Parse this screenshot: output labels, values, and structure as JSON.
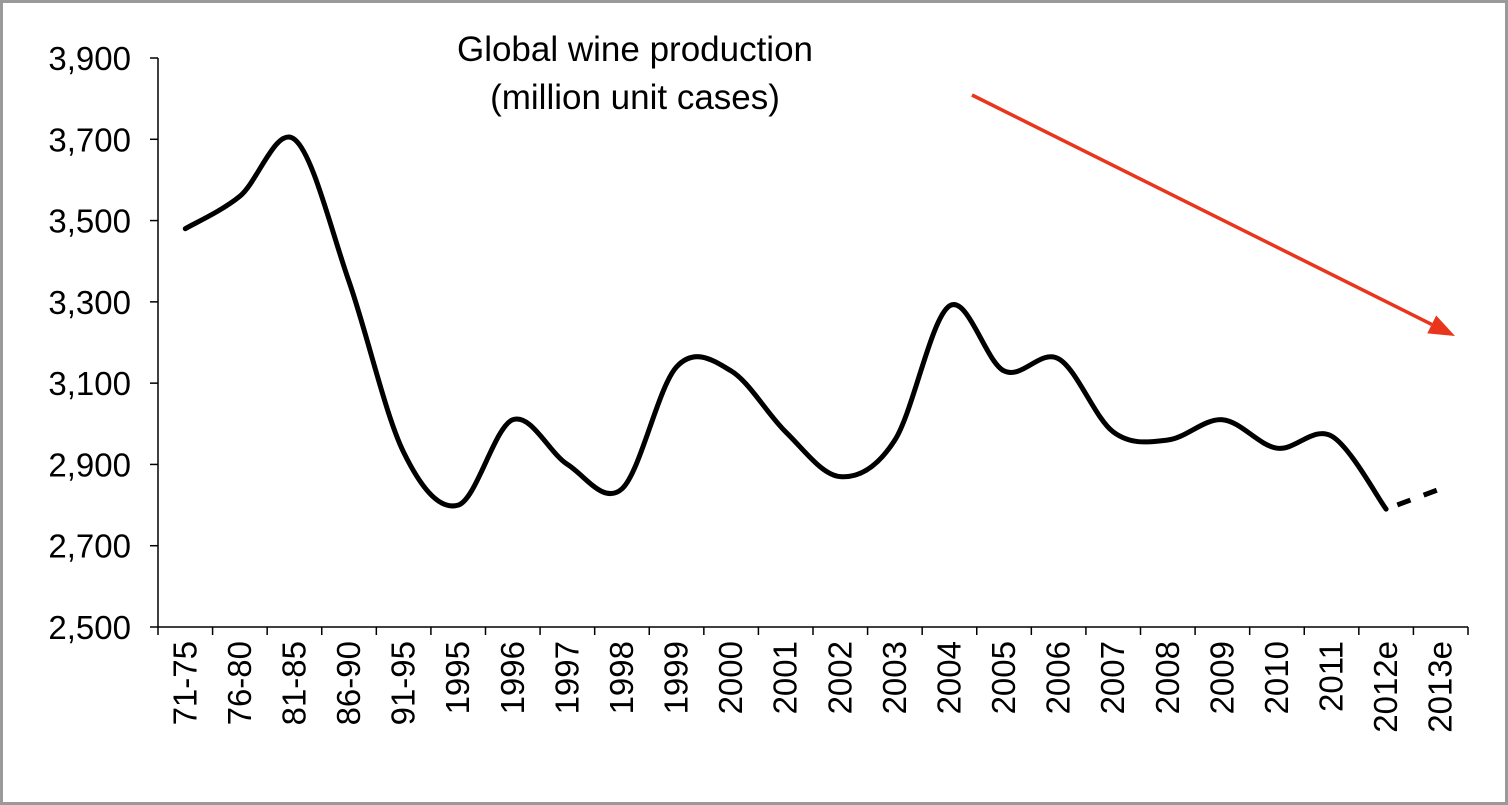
{
  "chart_data": {
    "type": "line",
    "title": "Global wine production",
    "subtitle": "(million unit cases)",
    "xlabel": "",
    "ylabel": "",
    "ylim": [
      2500,
      3900
    ],
    "yticks": [
      2500,
      2700,
      2900,
      3100,
      3300,
      3500,
      3700,
      3900
    ],
    "ytick_labels": [
      "2,500",
      "2,700",
      "2,900",
      "3,100",
      "3,300",
      "3,500",
      "3,700",
      "3,900"
    ],
    "categories": [
      "71-75",
      "76-80",
      "81-85",
      "86-90",
      "91-95",
      "1995",
      "1996",
      "1997",
      "1998",
      "1999",
      "2000",
      "2001",
      "2002",
      "2003",
      "2004",
      "2005",
      "2006",
      "2007",
      "2008",
      "2009",
      "2010",
      "2011",
      "2012e",
      "2013e"
    ],
    "grid": false,
    "legend": "none",
    "series": [
      {
        "values": [
          3480,
          3560,
          3700,
          3350,
          2930,
          2800,
          3010,
          2900,
          2840,
          3140,
          3130,
          2980,
          2870,
          2960,
          3290,
          3130,
          3160,
          2980,
          2960,
          3010,
          2940,
          2970,
          2790,
          2840
        ],
        "color": "#000000",
        "estimate_from_index": 22,
        "estimate_style": "dashed"
      }
    ],
    "annotations": [
      {
        "type": "trend-arrow",
        "direction": "downward",
        "color": "#e8351b"
      }
    ]
  }
}
